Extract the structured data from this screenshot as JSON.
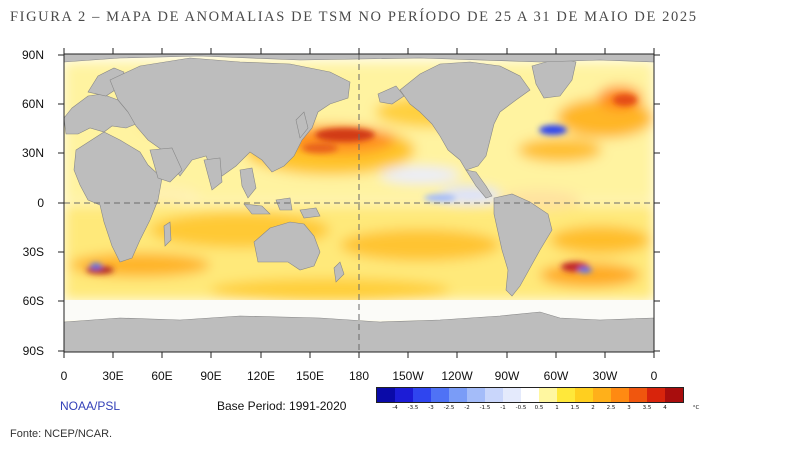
{
  "title": "FIGURA 2 – MAPA DE ANOMALIAS DE TSM NO PERÍODO DE 25 A 31 DE MAIO DE 2025",
  "lat_labels": [
    "90N",
    "60N",
    "30N",
    "0",
    "30S",
    "60S",
    "90S"
  ],
  "lon_labels": [
    "0",
    "30E",
    "60E",
    "90E",
    "120E",
    "150E",
    "180",
    "150W",
    "120W",
    "90W",
    "60W",
    "30W",
    "0"
  ],
  "brand": "NOAA/PSL",
  "base_period": "Base Period: 1991-2020",
  "colorbar": {
    "unit": "°C",
    "ticks": [
      "-4",
      "-3.5",
      "-3",
      "-2.5",
      "-2",
      "-1.5",
      "-1",
      "-0.5",
      "0.5",
      "1",
      "1.5",
      "2",
      "2.5",
      "3",
      "3.5",
      "4"
    ],
    "colors": [
      "#0a0aa8",
      "#1c1cd6",
      "#2f45ef",
      "#4f72f5",
      "#7a9cf7",
      "#a4bcf9",
      "#c9d6fb",
      "#e4eafc",
      "#ffffff",
      "#fff7a0",
      "#ffe83a",
      "#ffcf1f",
      "#ffb01a",
      "#ff8a12",
      "#f0560e",
      "#d8240c",
      "#a80d0d"
    ]
  },
  "source": "Fonte: NCEP/NCAR.",
  "icons": [
    "land-mass",
    "dashed-gridline"
  ]
}
